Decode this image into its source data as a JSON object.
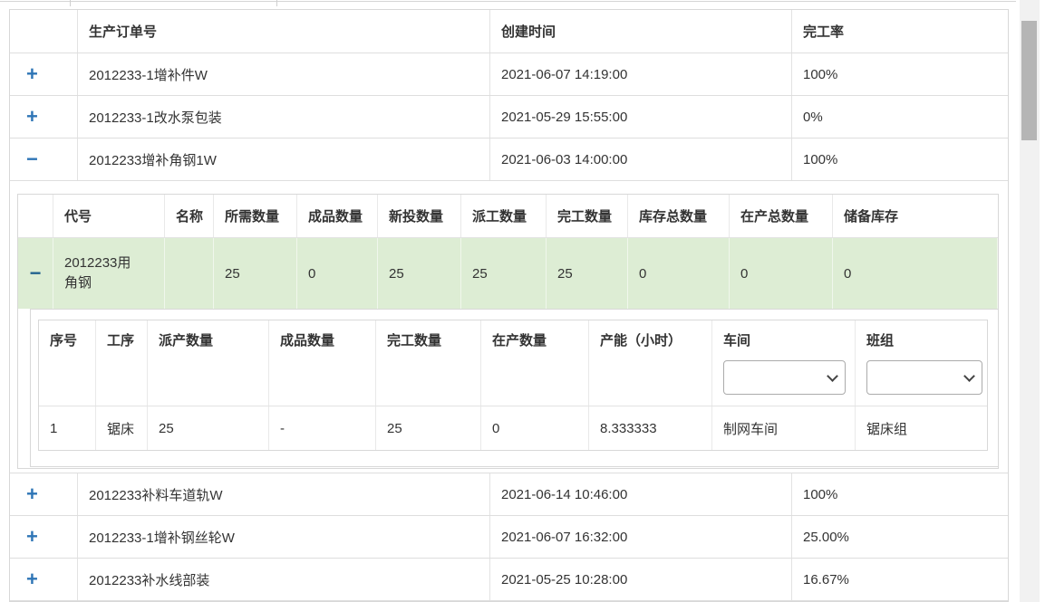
{
  "colors": {
    "accent_blue": "#2e75b6",
    "collapse_blue": "#23638f",
    "row_highlight_green": "#ddedd4",
    "border_gray": "#d8d8d8"
  },
  "icons": {
    "expand": "+",
    "collapse": "−"
  },
  "outer_table": {
    "order_label": "生产订单号",
    "created_label": "创建时间",
    "completion_label": "完工率",
    "rows_before": [
      {
        "order_no": "2012233-1增补件W",
        "created": "2021-06-07 14:19:00",
        "completion": "100%"
      },
      {
        "order_no": "2012233-1改水泵包装",
        "created": "2021-05-29 15:55:00",
        "completion": "0%"
      },
      {
        "order_no": "2012233增补角钢1W",
        "created": "2021-06-03 14:00:00",
        "completion": "100%"
      }
    ],
    "rows_after": [
      {
        "order_no": "2012233补料车道轨W",
        "created": "2021-06-14 10:46:00",
        "completion": "100%"
      },
      {
        "order_no": "2012233-1增补钢丝轮W",
        "created": "2021-06-07 16:32:00",
        "completion": "25.00%"
      },
      {
        "order_no": "2012233补水线部装",
        "created": "2021-05-25 10:28:00",
        "completion": "16.67%"
      }
    ]
  },
  "level2_table": {
    "code_label": "代号",
    "name_label": "名称",
    "required_label": "所需数量",
    "finished_label": "成品数量",
    "new_input_label": "新投数量",
    "dispatch_label": "派工数量",
    "complete_label": "完工数量",
    "stock_total_label": "库存总数量",
    "in_production_total_label": "在产总数量",
    "reserve_stock_label": "储备库存",
    "row": {
      "code": "2012233用角钢",
      "name": "",
      "required": "25",
      "finished": "0",
      "new_input": "25",
      "dispatched": "25",
      "completed": "25",
      "stock_total": "0",
      "in_production_total": "0",
      "reserve_stock": "0"
    }
  },
  "level3_table": {
    "seq_label": "序号",
    "process_label": "工序",
    "dispatch_label": "派产数量",
    "finished_label": "成品数量",
    "complete_label": "完工数量",
    "in_production_label": "在产数量",
    "capacity_label": "产能（小时）",
    "workshop_label": "车间",
    "team_label": "班组",
    "workshop_filter_value": "",
    "team_filter_value": "",
    "rows": [
      {
        "seq": "1",
        "process": "锯床",
        "dispatched": "25",
        "finished": "-",
        "completed": "25",
        "in_production": "0",
        "capacity": "8.333333",
        "workshop": "制网车间",
        "team": "锯床组"
      }
    ]
  }
}
